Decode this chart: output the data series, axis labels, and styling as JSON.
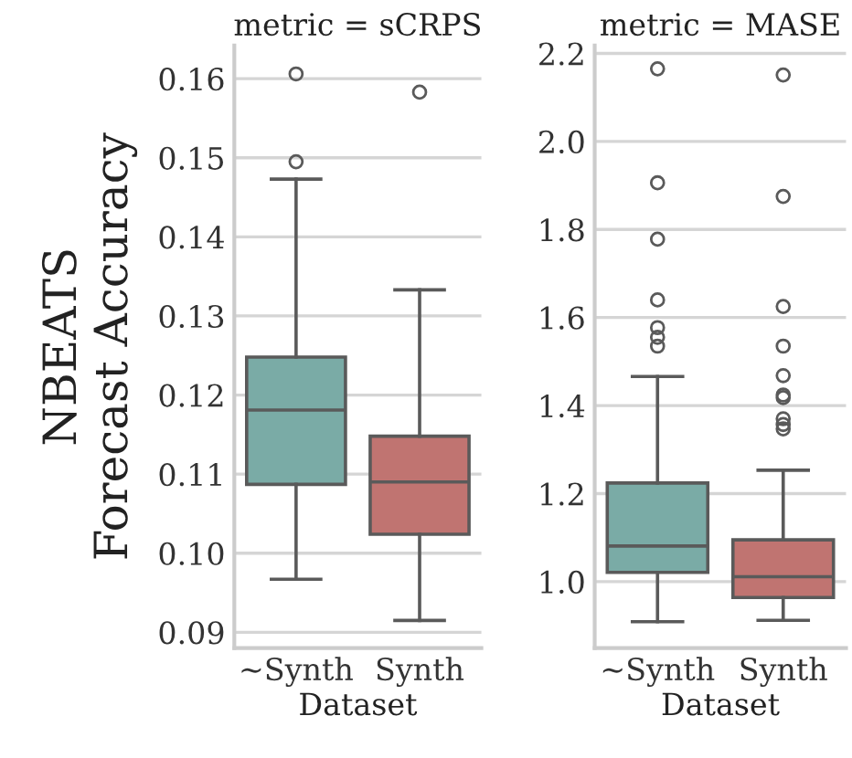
{
  "chart_data": [
    {
      "type": "box",
      "title": "metric = sCRPS",
      "xlabel": "Dataset",
      "ylabel": "NBEATS\nForecast Accuracy",
      "categories": [
        "~Synth",
        "Synth"
      ],
      "colors": [
        "#7aaba6",
        "#c07471"
      ],
      "boxes": [
        {
          "low": 0.0967,
          "q1": 0.1087,
          "median": 0.1181,
          "q3": 0.1248,
          "high": 0.1473,
          "outliers": [
            0.1606,
            0.1495
          ]
        },
        {
          "low": 0.0915,
          "q1": 0.1024,
          "median": 0.109,
          "q3": 0.1148,
          "high": 0.1333,
          "outliers": [
            0.1583
          ]
        }
      ],
      "ylim": [
        0.088,
        0.1642
      ],
      "yticks": [
        {
          "value": 0.09,
          "label": "0.09"
        },
        {
          "value": 0.1,
          "label": "0.10"
        },
        {
          "value": 0.11,
          "label": "0.11"
        },
        {
          "value": 0.12,
          "label": "0.12"
        },
        {
          "value": 0.13,
          "label": "0.13"
        },
        {
          "value": 0.14,
          "label": "0.14"
        },
        {
          "value": 0.15,
          "label": "0.15"
        },
        {
          "value": 0.16,
          "label": "0.16"
        }
      ],
      "grid": "y"
    },
    {
      "type": "box",
      "title": "metric = MASE",
      "xlabel": "Dataset",
      "categories": [
        "~Synth",
        "Synth"
      ],
      "colors": [
        "#7aaba6",
        "#c07471"
      ],
      "boxes": [
        {
          "low": 0.909,
          "q1": 1.021,
          "median": 1.081,
          "q3": 1.224,
          "high": 1.466,
          "outliers": [
            2.165,
            1.906,
            1.778,
            1.64,
            1.577,
            1.555,
            1.535
          ]
        },
        {
          "low": 0.912,
          "q1": 0.964,
          "median": 1.011,
          "q3": 1.095,
          "high": 1.253,
          "outliers": [
            2.151,
            1.875,
            1.625,
            1.535,
            1.468,
            1.424,
            1.418,
            1.37,
            1.357,
            1.347
          ]
        }
      ],
      "ylim": [
        0.849,
        2.218
      ],
      "yticks": [
        {
          "value": 1.0,
          "label": "1.0"
        },
        {
          "value": 1.2,
          "label": "1.2"
        },
        {
          "value": 1.4,
          "label": "1.4"
        },
        {
          "value": 1.6,
          "label": "1.6"
        },
        {
          "value": 1.8,
          "label": "1.8"
        },
        {
          "value": 2.0,
          "label": "2.0"
        },
        {
          "value": 2.2,
          "label": "2.2"
        }
      ],
      "grid": "y"
    }
  ]
}
